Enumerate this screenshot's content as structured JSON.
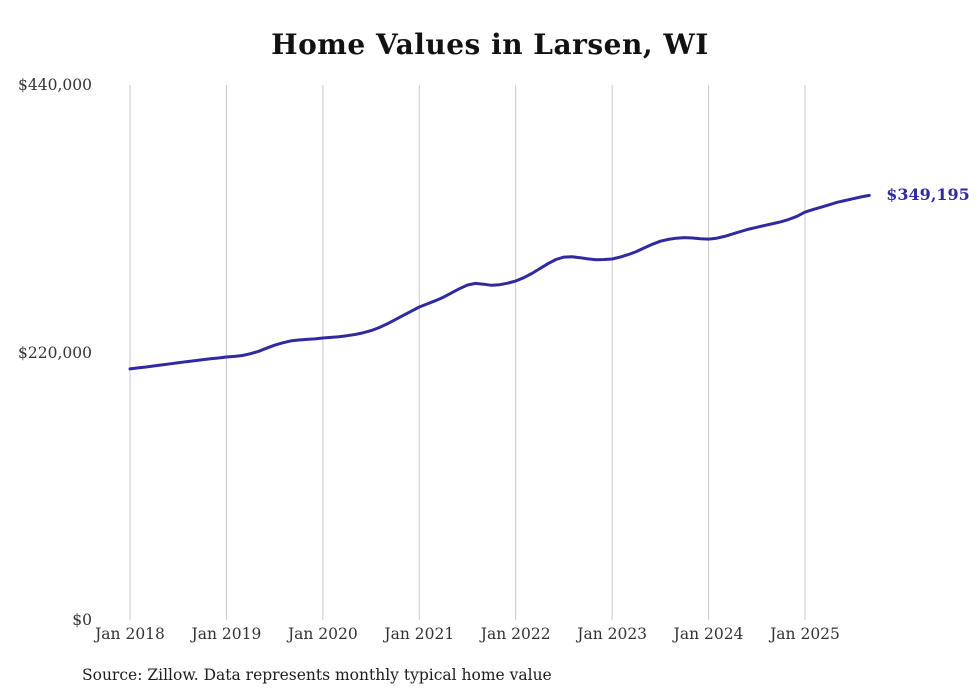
{
  "title": "Home Values in Larsen, WI",
  "source_note": "Source: Zillow. Data represents monthly typical home value",
  "end_label": "$349,195",
  "colors": {
    "line": "#2f2aa0",
    "end_label": "#2f2aa0",
    "grid": "#c9c9c9",
    "tick_text": "#333333",
    "title_text": "#121212"
  },
  "chart_data": {
    "type": "line",
    "title": "Home Values in Larsen, WI",
    "xlabel": "",
    "ylabel": "",
    "ylim": [
      0,
      440000
    ],
    "y_ticks": [
      {
        "value": 0,
        "label": "$0"
      },
      {
        "value": 220000,
        "label": "$220,000"
      },
      {
        "value": 440000,
        "label": "$440,000"
      }
    ],
    "x_tick_labels": [
      "Jan 2018",
      "Jan 2019",
      "Jan 2020",
      "Jan 2021",
      "Jan 2022",
      "Jan 2023",
      "Jan 2024",
      "Jan 2025"
    ],
    "x_start_month": "2018-01",
    "x_end_month": "2025-09",
    "grid": "vertical-only",
    "legend": "none",
    "last_value_label": "$349,195",
    "series": [
      {
        "name": "Monthly typical home value",
        "values": [
          206500,
          207300,
          208100,
          209000,
          209800,
          210700,
          211500,
          212400,
          213200,
          214000,
          214800,
          215500,
          216300,
          216800,
          217500,
          219000,
          221000,
          223500,
          226000,
          228000,
          229500,
          230300,
          230800,
          231200,
          231900,
          232400,
          233000,
          233800,
          234800,
          236200,
          238000,
          240500,
          243500,
          247000,
          250500,
          254000,
          257400,
          260000,
          262600,
          265500,
          269000,
          272500,
          275500,
          276800,
          276200,
          275300,
          275800,
          277000,
          278800,
          281500,
          285000,
          289000,
          293000,
          296500,
          298500,
          298800,
          298000,
          297000,
          296300,
          296500,
          296900,
          298500,
          300500,
          303000,
          306000,
          309000,
          311500,
          313000,
          314000,
          314500,
          314200,
          313500,
          313300,
          314000,
          315500,
          317500,
          319500,
          321500,
          323000,
          324500,
          326000,
          327500,
          329500,
          332000,
          335500,
          337500,
          339500,
          341500,
          343500,
          345000,
          346500,
          348000,
          349195
        ]
      }
    ]
  }
}
